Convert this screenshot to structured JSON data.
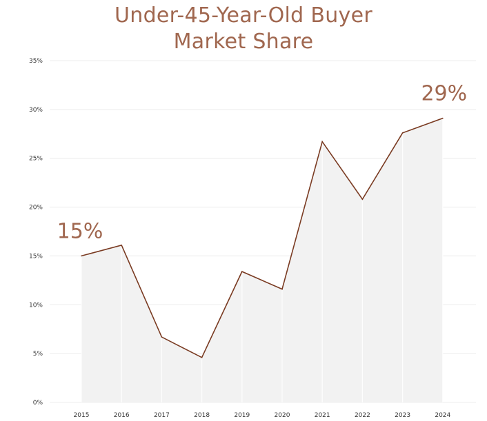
{
  "chart_data": {
    "type": "area",
    "title_lines": [
      "Under-45-Year-Old Buyer",
      "Market Share"
    ],
    "x": [
      "2015",
      "2016",
      "2017",
      "2018",
      "2019",
      "2020",
      "2021",
      "2022",
      "2023",
      "2024"
    ],
    "values": [
      15,
      16.1,
      6.7,
      4.6,
      13.4,
      11.6,
      26.7,
      20.8,
      27.6,
      29.1
    ],
    "ylim": [
      0,
      35
    ],
    "yticks": [
      0,
      5,
      10,
      15,
      20,
      25,
      30,
      35
    ],
    "ytick_labels": [
      "0%",
      "5%",
      "10%",
      "15%",
      "20%",
      "25%",
      "30%",
      "35%"
    ],
    "grid": true,
    "annotations": [
      {
        "label": "15%",
        "at_category": "2015"
      },
      {
        "label": "29%",
        "at_category": "2024"
      }
    ],
    "colors": {
      "line": "#7a3b22",
      "fill": "#f2f2f2",
      "grid": "#ececec",
      "accent": "#a0674f"
    }
  }
}
